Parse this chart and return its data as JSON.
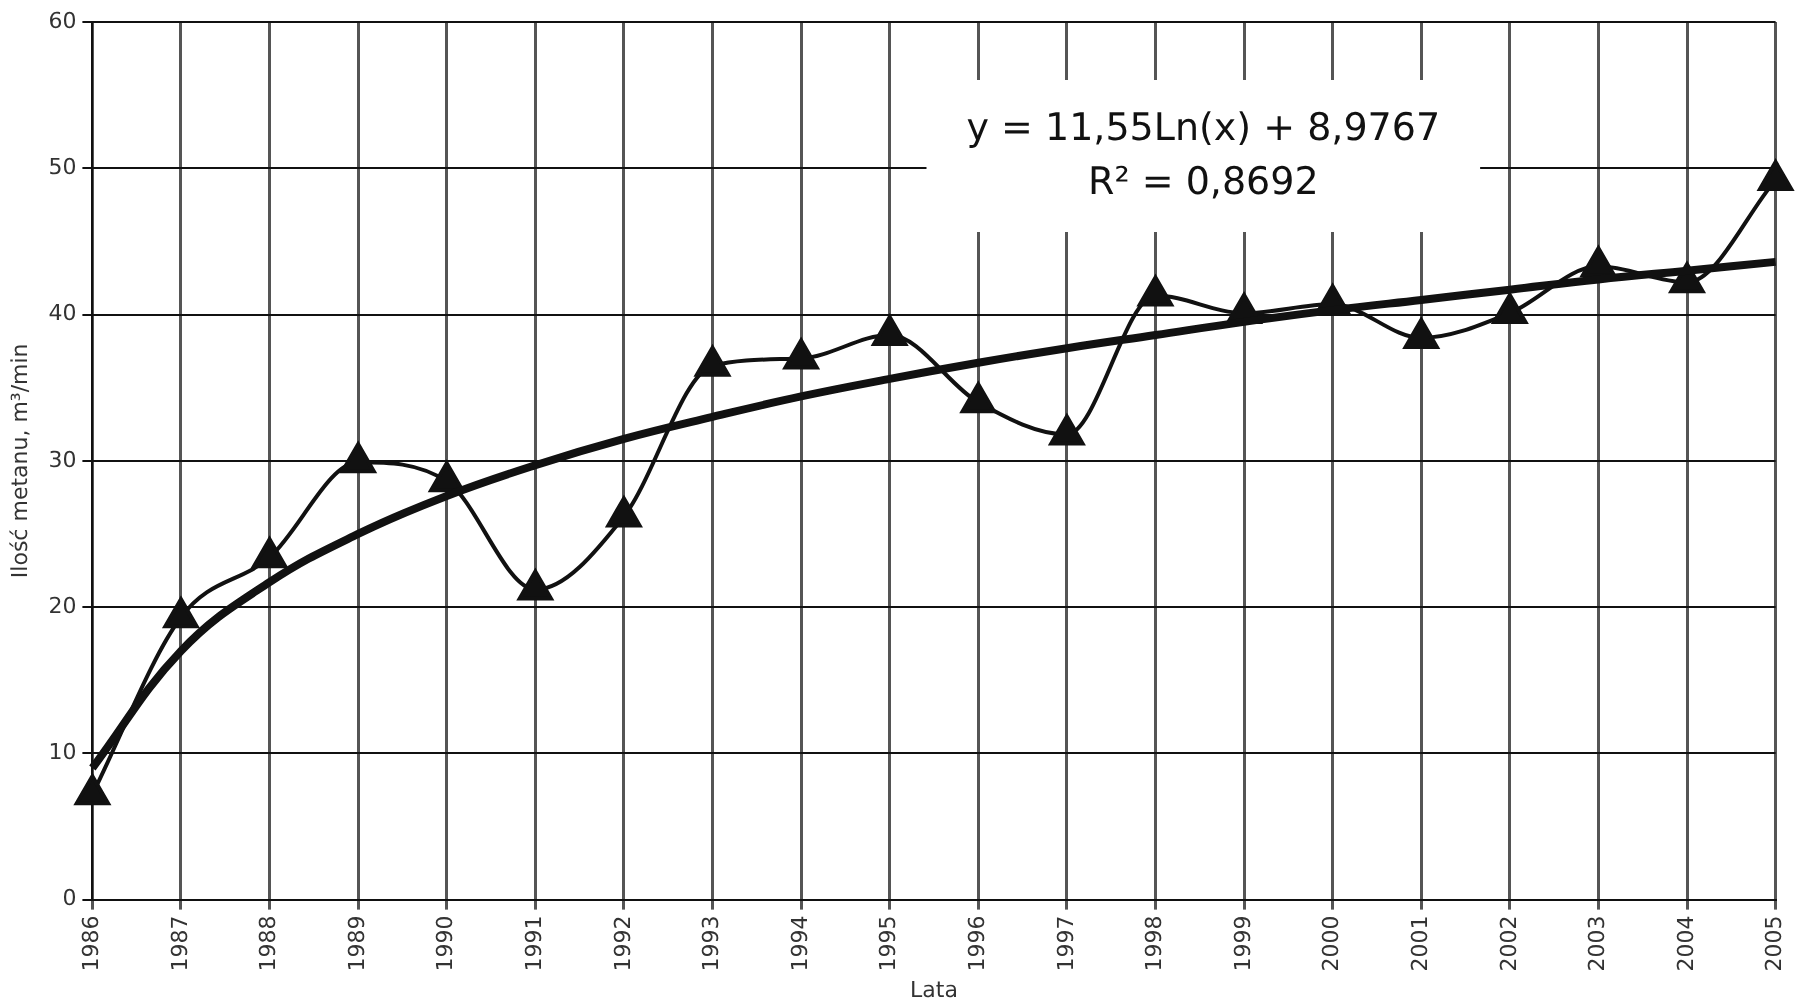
{
  "chart_data": {
    "type": "line",
    "xlabel": "Lata",
    "ylabel": "Ilość metanu, m³/min",
    "categories": [
      "1986",
      "1987",
      "1988",
      "1989",
      "1990",
      "1991",
      "1992",
      "1993",
      "1994",
      "1995",
      "1996",
      "1997",
      "1998",
      "1999",
      "2000",
      "2001",
      "2002",
      "2003",
      "2004",
      "2005"
    ],
    "series": [
      {
        "color": "#111111",
        "marker": "triangle",
        "values": [
          7.2,
          19.3,
          23.4,
          29.9,
          28.6,
          21.2,
          26.2,
          36.5,
          37,
          38.6,
          34,
          31.8,
          41.3,
          40.1,
          40.7,
          38.4,
          40.1,
          43.3,
          42.2,
          49.2
        ]
      },
      {
        "color": "#111111",
        "marker": "none",
        "values": [
          9,
          17,
          21.7,
          25,
          27.6,
          29.7,
          31.5,
          33,
          34.4,
          35.6,
          36.7,
          37.7,
          38.6,
          39.5,
          40.3,
          41,
          41.7,
          42.4,
          43,
          43.6
        ]
      }
    ],
    "ylim": [
      0,
      60
    ],
    "yticks": [
      0,
      10,
      20,
      30,
      40,
      50,
      60
    ],
    "grid": true,
    "annotations": [
      "y = 11,55Ln(x) + 8,9767\nR² = 0,8692"
    ]
  }
}
